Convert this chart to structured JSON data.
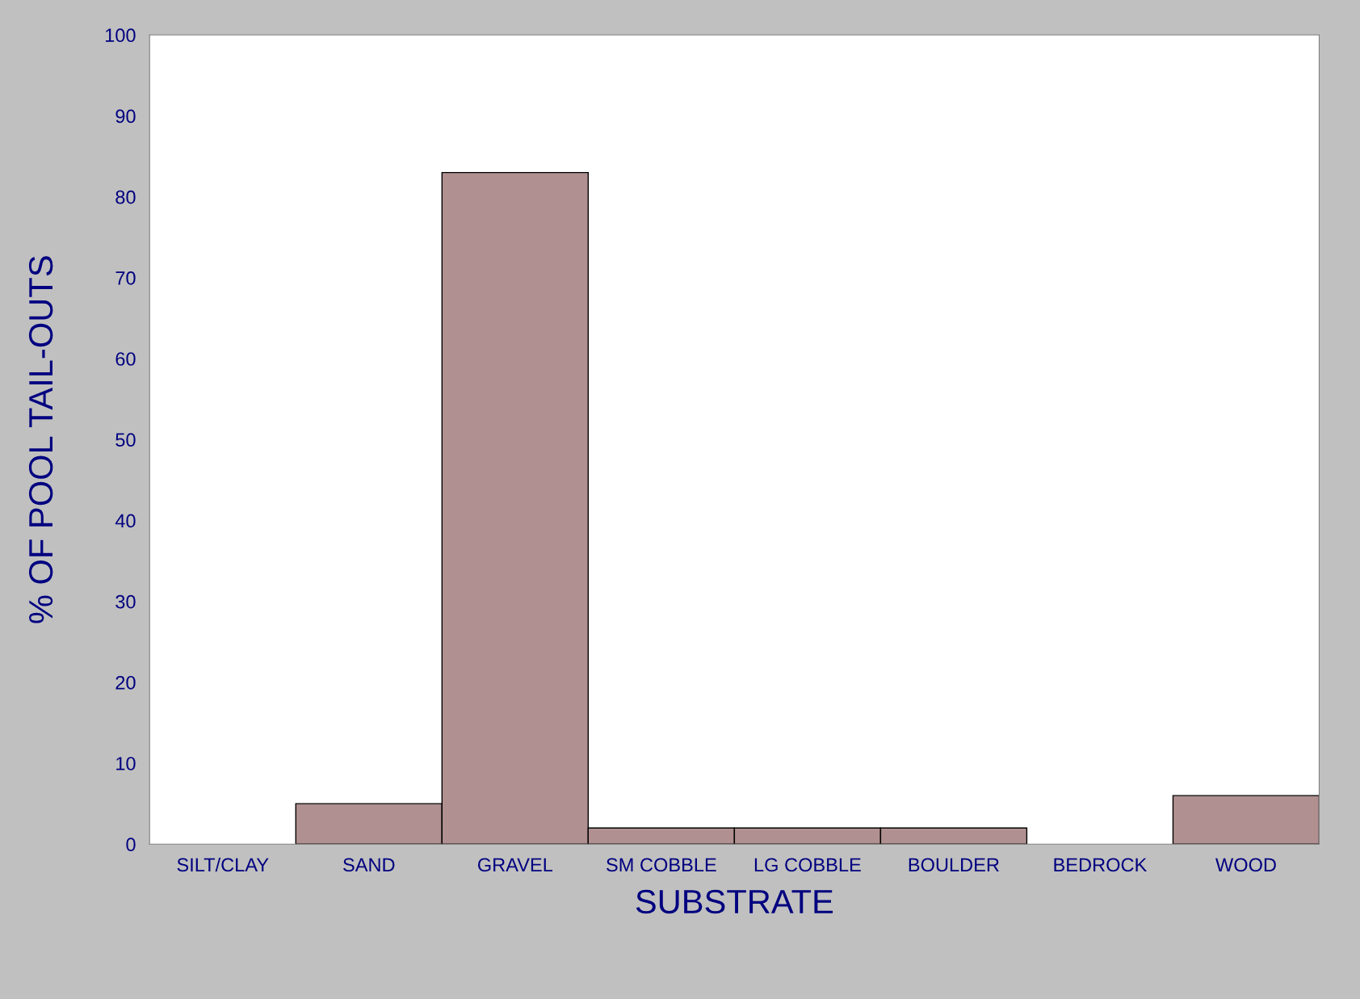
{
  "chart_data": {
    "type": "bar",
    "xlabel": "SUBSTRATE",
    "ylabel": "% OF POOL TAIL-OUTS",
    "categories": [
      "SILT/CLAY",
      "SAND",
      "GRAVEL",
      "SM COBBLE",
      "LG COBBLE",
      "BOULDER",
      "BEDROCK",
      "WOOD"
    ],
    "values": [
      0,
      5,
      83,
      2,
      2,
      2,
      0,
      6
    ],
    "color": "#b09090",
    "ylim": [
      0,
      100
    ],
    "yticks": [
      0,
      10,
      20,
      30,
      40,
      50,
      60,
      70,
      80,
      90,
      100
    ],
    "grid": false
  }
}
